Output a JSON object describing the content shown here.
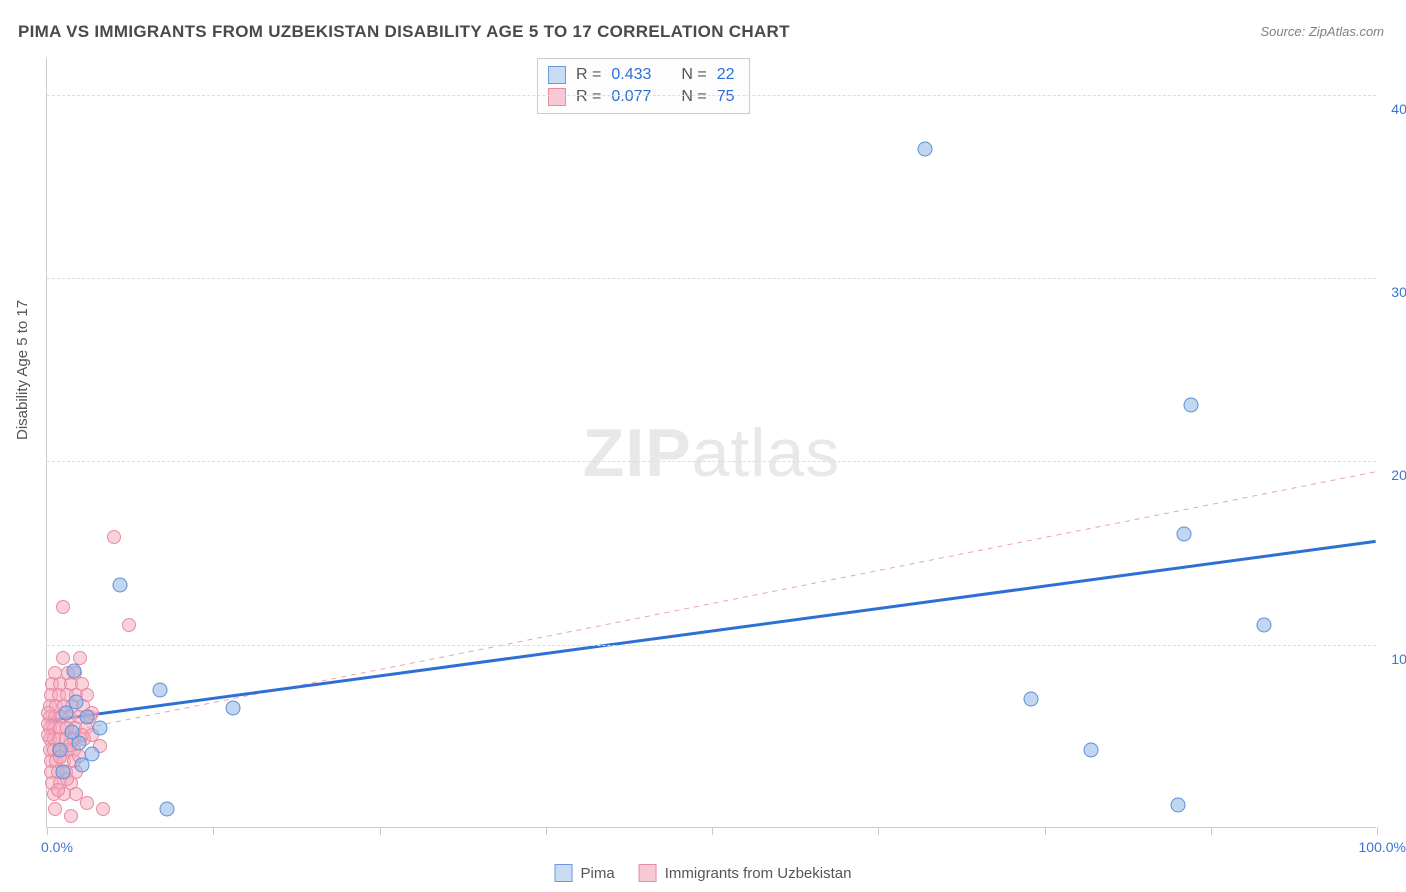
{
  "title": "PIMA VS IMMIGRANTS FROM UZBEKISTAN DISABILITY AGE 5 TO 17 CORRELATION CHART",
  "source": "Source: ZipAtlas.com",
  "ylabel": "Disability Age 5 to 17",
  "watermark_bold": "ZIP",
  "watermark_light": "atlas",
  "chart": {
    "type": "scatter",
    "xlim": [
      0,
      100
    ],
    "ylim": [
      0,
      42
    ],
    "x_ticks_pct": [
      0,
      12.5,
      25,
      37.5,
      50,
      62.5,
      75,
      87.5,
      100
    ],
    "x_tick_labels": {
      "0": "0.0%",
      "100": "100.0%"
    },
    "y_gridlines": [
      10,
      20,
      30,
      40
    ],
    "y_tick_labels": {
      "10": "10.0%",
      "20": "20.0%",
      "30": "30.0%",
      "40": "40.0%"
    },
    "background_color": "#ffffff",
    "grid_color": "#dddddd",
    "axis_color": "#cccccc",
    "tick_label_color": "#3b74d1",
    "label_fontsize": 15,
    "tick_fontsize": 14,
    "title_fontsize": 17,
    "title_color": "#4a4a4a"
  },
  "stats": {
    "series1": {
      "color": "blue",
      "R_label": "R =",
      "R": "0.433",
      "N_label": "N =",
      "N": "22"
    },
    "series2": {
      "color": "pink",
      "R_label": "R =",
      "R": "0.077",
      "N_label": "N =",
      "N": "75"
    }
  },
  "legend": {
    "series1": "Pima",
    "series2": "Immigrants from Uzbekistan"
  },
  "series_blue": {
    "color_fill": "rgba(140,180,230,0.55)",
    "color_stroke": "#5b8fd6",
    "marker_size": 15,
    "trend": {
      "x1": 0,
      "y1": 5.8,
      "x2": 100,
      "y2": 15.6,
      "stroke": "#2e6fd6",
      "width": 3,
      "dash": "none"
    },
    "points": [
      [
        66.0,
        37.0
      ],
      [
        86.0,
        23.0
      ],
      [
        85.5,
        16.0
      ],
      [
        91.5,
        11.0
      ],
      [
        74.0,
        7.0
      ],
      [
        78.5,
        4.2
      ],
      [
        85.0,
        1.2
      ],
      [
        14.0,
        6.5
      ],
      [
        8.5,
        7.5
      ],
      [
        5.5,
        13.2
      ],
      [
        9.0,
        1.0
      ],
      [
        4.0,
        5.4
      ],
      [
        3.0,
        6.0
      ],
      [
        2.4,
        4.6
      ],
      [
        1.9,
        5.2
      ],
      [
        1.4,
        6.2
      ],
      [
        2.6,
        3.4
      ],
      [
        1.2,
        3.0
      ],
      [
        3.4,
        4.0
      ],
      [
        2.0,
        8.5
      ],
      [
        1.0,
        4.2
      ],
      [
        2.2,
        6.8
      ]
    ]
  },
  "series_pink": {
    "color_fill": "rgba(245,165,185,0.5)",
    "color_stroke": "#e88ba4",
    "marker_size": 14,
    "trend": {
      "x1": 0,
      "y1": 5.0,
      "x2": 100,
      "y2": 19.4,
      "stroke": "#e9a3b4",
      "width": 1,
      "dash": "5,5"
    },
    "points": [
      [
        5.0,
        15.8
      ],
      [
        1.2,
        12.0
      ],
      [
        6.2,
        11.0
      ],
      [
        1.2,
        9.2
      ],
      [
        2.5,
        9.2
      ],
      [
        0.6,
        8.4
      ],
      [
        1.6,
        8.4
      ],
      [
        2.1,
        8.4
      ],
      [
        0.4,
        7.8
      ],
      [
        1.0,
        7.8
      ],
      [
        1.8,
        7.8
      ],
      [
        2.6,
        7.8
      ],
      [
        0.3,
        7.2
      ],
      [
        0.9,
        7.2
      ],
      [
        1.5,
        7.2
      ],
      [
        2.2,
        7.2
      ],
      [
        3.0,
        7.2
      ],
      [
        0.2,
        6.6
      ],
      [
        0.7,
        6.6
      ],
      [
        1.3,
        6.6
      ],
      [
        1.9,
        6.6
      ],
      [
        2.7,
        6.6
      ],
      [
        0.2,
        6.0
      ],
      [
        0.6,
        6.0
      ],
      [
        1.1,
        6.0
      ],
      [
        1.7,
        6.0
      ],
      [
        2.4,
        6.0
      ],
      [
        3.2,
        6.0
      ],
      [
        0.2,
        5.4
      ],
      [
        0.5,
        5.4
      ],
      [
        1.0,
        5.4
      ],
      [
        1.5,
        5.4
      ],
      [
        2.1,
        5.4
      ],
      [
        2.9,
        5.4
      ],
      [
        0.2,
        4.8
      ],
      [
        0.5,
        4.8
      ],
      [
        0.9,
        4.8
      ],
      [
        1.4,
        4.8
      ],
      [
        2.0,
        4.8
      ],
      [
        2.8,
        4.8
      ],
      [
        0.2,
        4.2
      ],
      [
        0.5,
        4.2
      ],
      [
        0.9,
        4.2
      ],
      [
        1.4,
        4.2
      ],
      [
        2.0,
        4.2
      ],
      [
        0.3,
        3.6
      ],
      [
        0.7,
        3.6
      ],
      [
        1.3,
        3.6
      ],
      [
        2.0,
        3.6
      ],
      [
        0.3,
        3.0
      ],
      [
        0.8,
        3.0
      ],
      [
        1.4,
        3.0
      ],
      [
        2.2,
        3.0
      ],
      [
        0.4,
        2.4
      ],
      [
        1.0,
        2.4
      ],
      [
        1.8,
        2.4
      ],
      [
        0.5,
        1.8
      ],
      [
        1.3,
        1.8
      ],
      [
        2.2,
        1.8
      ],
      [
        3.0,
        1.3
      ],
      [
        4.2,
        1.0
      ],
      [
        0.6,
        1.0
      ],
      [
        1.8,
        0.6
      ],
      [
        2.6,
        5.0
      ],
      [
        3.4,
        5.0
      ],
      [
        3.4,
        6.2
      ],
      [
        4.0,
        4.4
      ],
      [
        0.1,
        5.0
      ],
      [
        0.1,
        5.6
      ],
      [
        0.1,
        6.2
      ],
      [
        1.0,
        3.8
      ],
      [
        1.7,
        4.5
      ],
      [
        2.4,
        3.9
      ],
      [
        0.8,
        2.0
      ],
      [
        1.5,
        2.6
      ]
    ]
  }
}
